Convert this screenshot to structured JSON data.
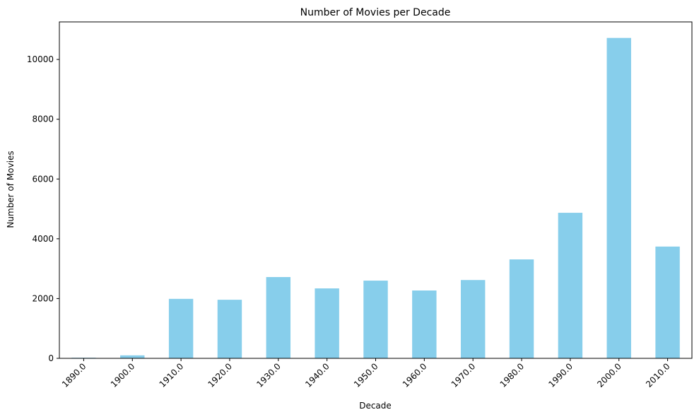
{
  "chart_data": {
    "type": "bar",
    "title": "Number of Movies per Decade",
    "xlabel": "Decade",
    "ylabel": "Number of Movies",
    "categories": [
      "1890.0",
      "1900.0",
      "1910.0",
      "1920.0",
      "1930.0",
      "1940.0",
      "1950.0",
      "1960.0",
      "1970.0",
      "1980.0",
      "1990.0",
      "2000.0",
      "2010.0"
    ],
    "values": [
      20,
      100,
      1990,
      1960,
      2720,
      2340,
      2600,
      2270,
      2620,
      3310,
      4870,
      10720,
      3740
    ],
    "yticks": [
      0,
      2000,
      4000,
      6000,
      8000,
      10000
    ],
    "ylim": [
      0,
      11256
    ],
    "bar_color": "#87CEEB",
    "grid": false,
    "xtick_rotation": 45
  }
}
